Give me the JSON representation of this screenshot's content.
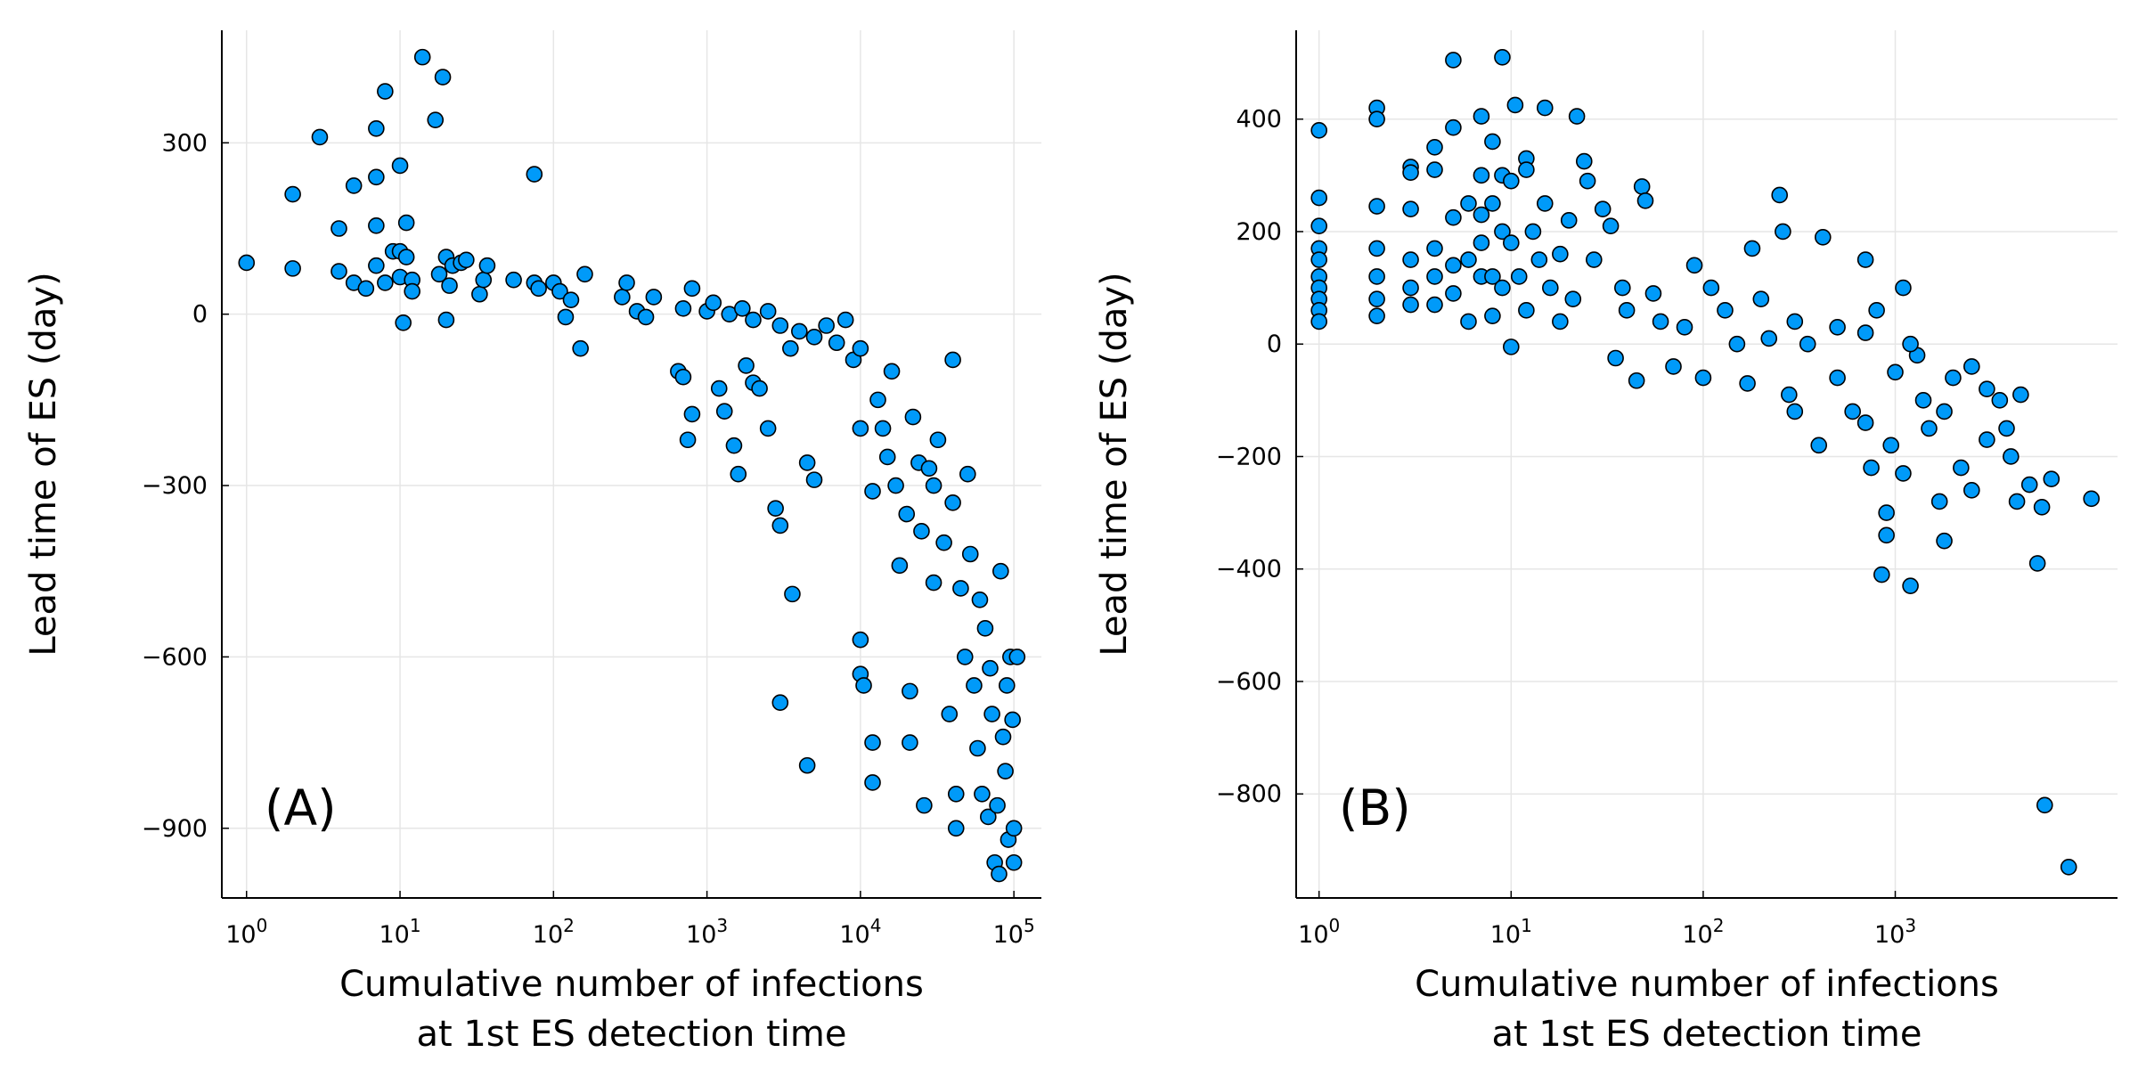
{
  "chart_data": [
    {
      "type": "scatter",
      "annotation": "(A)",
      "xlabel": [
        "Cumulative number of infections",
        "at 1st ES detection time"
      ],
      "ylabel": "Lead time of ES (day)",
      "xscale": "log",
      "grid": true,
      "color": "#009af9",
      "xlim": [
        0.69,
        151000
      ],
      "ylim": [
        -1022,
        497
      ],
      "xticks": [
        {
          "value": 1,
          "label": "10^0"
        },
        {
          "value": 10,
          "label": "10^1"
        },
        {
          "value": 100,
          "label": "10^2"
        },
        {
          "value": 1000,
          "label": "10^3"
        },
        {
          "value": 10000,
          "label": "10^4"
        },
        {
          "value": 100000,
          "label": "10^5"
        }
      ],
      "yticks": [
        {
          "value": -900,
          "label": "−900"
        },
        {
          "value": -600,
          "label": "−600"
        },
        {
          "value": -300,
          "label": "−300"
        },
        0,
        300
      ],
      "x": [
        1,
        2,
        2,
        3,
        4,
        4,
        5,
        5,
        6,
        7,
        7,
        7,
        7,
        8,
        8,
        9,
        10,
        10,
        10,
        10.5,
        11,
        11,
        12,
        12,
        14,
        17,
        18,
        19,
        20,
        20,
        21,
        22,
        25,
        27,
        33,
        35,
        37,
        55,
        75,
        75,
        80,
        100,
        110,
        120,
        130,
        150,
        160,
        280,
        300,
        350,
        400,
        450,
        650,
        700,
        700,
        750,
        800,
        800,
        1000,
        1100,
        1200,
        1300,
        1500,
        1600,
        1800,
        2000,
        2200,
        2500,
        2800,
        3000,
        3000,
        3600,
        4500,
        4500,
        5000,
        1400,
        1700,
        2000,
        2500,
        3000,
        3500,
        4000,
        5000,
        6000,
        7000,
        8000,
        9000,
        10000,
        10000,
        10000,
        10000,
        10500,
        12000,
        12000,
        12000,
        13000,
        14000,
        15000,
        16000,
        17000,
        18000,
        20000,
        21000,
        21000,
        22000,
        24000,
        25000,
        26000,
        28000,
        30000,
        30000,
        32000,
        35000,
        38000,
        40000,
        40000,
        42000,
        42000,
        45000,
        48000,
        50000,
        52000,
        55000,
        58000,
        60000,
        62000,
        65000,
        68000,
        70000,
        72000,
        75000,
        78000,
        80000,
        82000,
        85000,
        88000,
        90000,
        92000,
        95000,
        98000,
        100000,
        100000,
        105000
      ],
      "values": [
        90,
        210,
        80,
        310,
        150,
        75,
        225,
        55,
        45,
        325,
        240,
        155,
        85,
        390,
        55,
        110,
        260,
        110,
        65,
        -15,
        160,
        100,
        60,
        40,
        450,
        340,
        70,
        415,
        100,
        -10,
        50,
        85,
        90,
        95,
        35,
        60,
        85,
        60,
        245,
        55,
        45,
        55,
        40,
        -5,
        25,
        -60,
        70,
        30,
        55,
        5,
        -5,
        30,
        -100,
        -110,
        10,
        -220,
        -175,
        45,
        5,
        20,
        -130,
        -170,
        -230,
        -280,
        -90,
        -120,
        -130,
        -200,
        -340,
        -370,
        -680,
        -490,
        -790,
        -260,
        -290,
        0,
        10,
        -10,
        5,
        -20,
        -60,
        -30,
        -40,
        -20,
        -50,
        -10,
        -80,
        -60,
        -200,
        -570,
        -630,
        -650,
        -310,
        -750,
        -820,
        -150,
        -200,
        -250,
        -100,
        -300,
        -440,
        -350,
        -660,
        -750,
        -180,
        -260,
        -380,
        -860,
        -270,
        -300,
        -470,
        -220,
        -400,
        -700,
        -80,
        -330,
        -840,
        -900,
        -480,
        -600,
        -280,
        -420,
        -650,
        -760,
        -500,
        -840,
        -550,
        -880,
        -620,
        -700,
        -960,
        -860,
        -980,
        -450,
        -740,
        -800,
        -650,
        -920,
        -600,
        -710,
        -960,
        -900,
        -600
      ]
    },
    {
      "type": "scatter",
      "annotation": "(B)",
      "xlabel": [
        "Cumulative number of infections",
        "at 1st ES detection time"
      ],
      "ylabel": "Lead time of ES (day)",
      "xscale": "log",
      "grid": true,
      "color": "#009af9",
      "xlim": [
        0.76,
        14360
      ],
      "ylim": [
        -985,
        558
      ],
      "xticks": [
        {
          "value": 1,
          "label": "10^0"
        },
        {
          "value": 10,
          "label": "10^1"
        },
        {
          "value": 100,
          "label": "10^2"
        },
        {
          "value": 1000,
          "label": "10^3"
        }
      ],
      "yticks": [
        {
          "value": -800,
          "label": "−800"
        },
        {
          "value": -600,
          "label": "−600"
        },
        {
          "value": -400,
          "label": "−400"
        },
        {
          "value": -200,
          "label": "−200"
        },
        0,
        200,
        400
      ],
      "x": [
        1,
        1,
        1,
        1,
        1,
        1,
        1,
        1,
        1,
        1,
        2,
        2,
        2,
        2,
        2,
        2,
        2,
        3,
        3,
        3,
        3,
        3,
        3,
        4,
        4,
        4,
        4,
        4,
        5,
        5,
        5,
        5,
        5,
        6,
        6,
        6,
        7,
        7,
        7,
        7,
        7,
        8,
        8,
        8,
        8,
        9,
        9,
        9,
        9,
        10,
        10,
        10,
        10.5,
        11,
        12,
        12,
        12,
        13,
        14,
        15,
        15,
        16,
        18,
        18,
        20,
        21,
        22,
        24,
        25,
        27,
        30,
        33,
        35,
        38,
        40,
        45,
        48,
        50,
        55,
        60,
        70,
        80,
        90,
        100,
        110,
        130,
        150,
        170,
        180,
        200,
        220,
        250,
        260,
        280,
        300,
        350,
        400,
        420,
        500,
        600,
        700,
        700,
        750,
        800,
        850,
        900,
        900,
        950,
        1000,
        1100,
        1100,
        1200,
        1300,
        1400,
        1500,
        1700,
        1800,
        2000,
        2200,
        2500,
        3000,
        3500,
        4000,
        4500,
        5000,
        5500,
        5800,
        6000,
        6500,
        8000,
        10500,
        1800,
        2500,
        3000,
        3800,
        4300,
        1200,
        700,
        500,
        300
      ],
      "values": [
        380,
        260,
        210,
        170,
        150,
        120,
        100,
        80,
        60,
        40,
        420,
        400,
        245,
        170,
        120,
        80,
        50,
        315,
        305,
        240,
        150,
        100,
        70,
        350,
        310,
        170,
        120,
        70,
        505,
        385,
        225,
        140,
        90,
        250,
        150,
        40,
        405,
        300,
        230,
        180,
        120,
        360,
        250,
        120,
        50,
        510,
        300,
        200,
        100,
        290,
        180,
        -5,
        425,
        120,
        330,
        310,
        60,
        200,
        150,
        420,
        250,
        100,
        160,
        40,
        220,
        80,
        405,
        325,
        290,
        150,
        240,
        210,
        -25,
        100,
        60,
        -65,
        280,
        255,
        90,
        40,
        -40,
        30,
        140,
        -60,
        100,
        60,
        0,
        -70,
        170,
        80,
        10,
        265,
        200,
        -90,
        -120,
        0,
        -180,
        190,
        -60,
        -120,
        150,
        -140,
        -220,
        60,
        -410,
        -300,
        -340,
        -180,
        -50,
        -230,
        100,
        -430,
        -20,
        -100,
        -150,
        -280,
        -350,
        -60,
        -220,
        -260,
        -170,
        -100,
        -200,
        -90,
        -250,
        -390,
        -290,
        -820,
        -240,
        -930,
        -275,
        -120,
        -40,
        -80,
        -150,
        -280,
        0,
        20,
        30,
        40
      ]
    }
  ]
}
